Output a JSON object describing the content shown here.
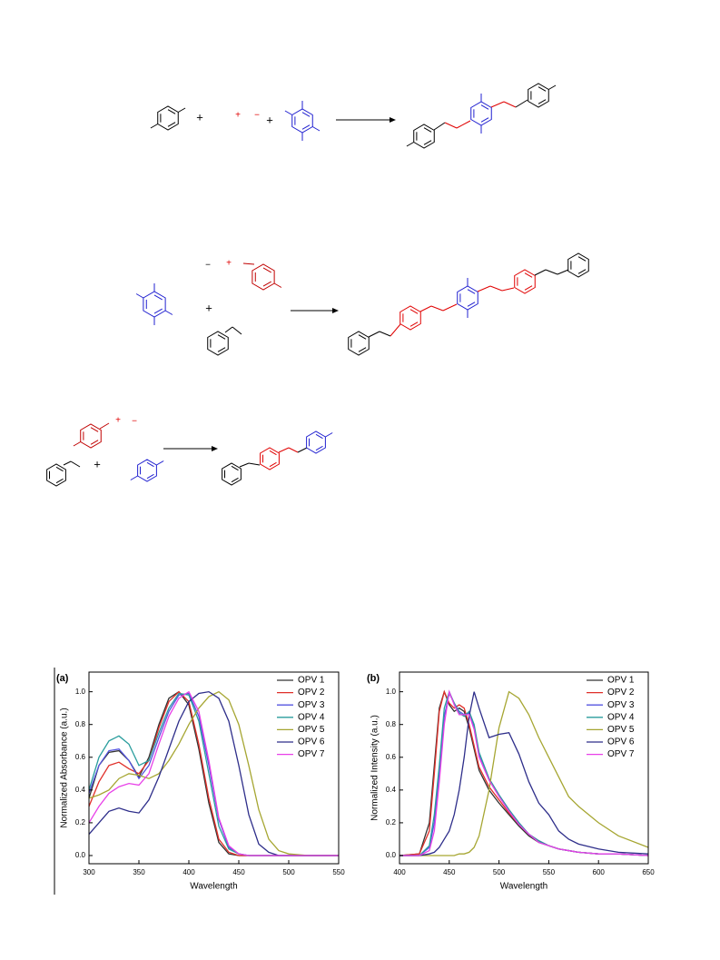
{
  "schemes": [
    {
      "signs": [
        "+",
        "+",
        "−",
        "+"
      ]
    },
    {
      "signs": [
        "−",
        "+",
        "+"
      ]
    },
    {
      "signs": [
        "+",
        "−",
        "+"
      ]
    }
  ],
  "chart_data": [
    {
      "type": "line",
      "label": "(a)",
      "xlabel": "Wavelength",
      "ylabel": "Normalized Absorbance (a.u.)",
      "x": [
        300,
        310,
        320,
        330,
        340,
        350,
        360,
        370,
        380,
        390,
        400,
        410,
        420,
        430,
        440,
        450,
        460,
        470,
        480,
        490,
        500,
        520,
        550
      ],
      "xlim": [
        300,
        550
      ],
      "xticks": [
        300,
        350,
        400,
        450,
        500,
        550
      ],
      "ylim": [
        -0.05,
        1.12
      ],
      "yticks": [
        {
          "value": 0,
          "label": "0.0"
        },
        0.2,
        0.4,
        0.6,
        0.8,
        {
          "value": 1,
          "label": "1.0"
        }
      ],
      "legend": "upper right",
      "series": [
        {
          "name": "OPV 1",
          "color": "#333333",
          "values": [
            0.35,
            0.55,
            0.63,
            0.64,
            0.58,
            0.48,
            0.6,
            0.8,
            0.96,
            1.0,
            0.92,
            0.65,
            0.32,
            0.08,
            0.01,
            0,
            0,
            0,
            0,
            0,
            0,
            0,
            0
          ]
        },
        {
          "name": "OPV 2",
          "color": "#e0302a",
          "values": [
            0.3,
            0.45,
            0.55,
            0.57,
            0.53,
            0.5,
            0.58,
            0.78,
            0.94,
            1.0,
            0.94,
            0.68,
            0.35,
            0.1,
            0.02,
            0,
            0,
            0,
            0,
            0,
            0,
            0,
            0
          ]
        },
        {
          "name": "OPV 3",
          "color": "#5454e0",
          "values": [
            0.38,
            0.55,
            0.64,
            0.65,
            0.58,
            0.47,
            0.55,
            0.72,
            0.88,
            0.98,
            0.99,
            0.85,
            0.55,
            0.22,
            0.05,
            0.01,
            0,
            0,
            0,
            0,
            0,
            0,
            0
          ]
        },
        {
          "name": "OPV 4",
          "color": "#2a9d9d",
          "values": [
            0.4,
            0.6,
            0.7,
            0.73,
            0.68,
            0.55,
            0.58,
            0.75,
            0.9,
            0.99,
            0.98,
            0.82,
            0.5,
            0.18,
            0.04,
            0.01,
            0,
            0,
            0,
            0,
            0,
            0,
            0
          ]
        },
        {
          "name": "OPV 5",
          "color": "#a6a632",
          "values": [
            0.35,
            0.37,
            0.4,
            0.47,
            0.5,
            0.49,
            0.47,
            0.5,
            0.58,
            0.68,
            0.8,
            0.9,
            0.97,
            1.0,
            0.95,
            0.8,
            0.55,
            0.28,
            0.1,
            0.03,
            0.01,
            0,
            0
          ]
        },
        {
          "name": "OPV 6",
          "color": "#2e2e8a",
          "values": [
            0.13,
            0.2,
            0.27,
            0.29,
            0.27,
            0.26,
            0.34,
            0.48,
            0.65,
            0.82,
            0.94,
            0.99,
            1.0,
            0.96,
            0.82,
            0.55,
            0.25,
            0.07,
            0.02,
            0,
            0,
            0,
            0
          ]
        },
        {
          "name": "OPV 7",
          "color": "#e840e8",
          "values": [
            0.2,
            0.3,
            0.38,
            0.42,
            0.44,
            0.43,
            0.5,
            0.68,
            0.85,
            0.96,
            1.0,
            0.88,
            0.58,
            0.23,
            0.06,
            0.01,
            0,
            0,
            0,
            0,
            0,
            0,
            0
          ]
        }
      ]
    },
    {
      "type": "line",
      "label": "(b)",
      "xlabel": "Wavelength",
      "ylabel": "Normalized Intensity (a.u.)",
      "x": [
        400,
        420,
        430,
        435,
        440,
        445,
        450,
        455,
        460,
        465,
        470,
        475,
        480,
        490,
        500,
        510,
        520,
        530,
        540,
        550,
        560,
        570,
        580,
        600,
        620,
        650
      ],
      "xlim": [
        400,
        650
      ],
      "xticks": [
        400,
        450,
        500,
        550,
        600,
        650
      ],
      "ylim": [
        -0.05,
        1.12
      ],
      "yticks": [
        {
          "value": 0,
          "label": "0.0"
        },
        0.2,
        0.4,
        0.6,
        0.8,
        {
          "value": 1,
          "label": "1.0"
        }
      ],
      "legend": "upper right",
      "series": [
        {
          "name": "OPV 1",
          "color": "#333333",
          "values": [
            0,
            0.01,
            0.2,
            0.55,
            0.9,
            1.0,
            0.92,
            0.88,
            0.9,
            0.88,
            0.78,
            0.65,
            0.52,
            0.4,
            0.32,
            0.25,
            0.18,
            0.12,
            0.08,
            0.06,
            0.04,
            0.03,
            0.02,
            0.01,
            0.01,
            0
          ]
        },
        {
          "name": "OPV 2",
          "color": "#e0302a",
          "values": [
            0,
            0.01,
            0.15,
            0.5,
            0.88,
            1.0,
            0.93,
            0.9,
            0.92,
            0.9,
            0.8,
            0.67,
            0.54,
            0.42,
            0.34,
            0.26,
            0.19,
            0.13,
            0.09,
            0.06,
            0.04,
            0.03,
            0.02,
            0.01,
            0.01,
            0
          ]
        },
        {
          "name": "OPV 3",
          "color": "#5454e0",
          "values": [
            0,
            0,
            0.05,
            0.2,
            0.5,
            0.85,
            0.99,
            0.93,
            0.88,
            0.86,
            0.87,
            0.78,
            0.62,
            0.47,
            0.37,
            0.28,
            0.2,
            0.13,
            0.09,
            0.06,
            0.04,
            0.03,
            0.02,
            0.01,
            0.01,
            0
          ]
        },
        {
          "name": "OPV 4",
          "color": "#2a9d9d",
          "values": [
            0,
            0,
            0.06,
            0.25,
            0.55,
            0.9,
            1.0,
            0.93,
            0.87,
            0.85,
            0.88,
            0.8,
            0.63,
            0.47,
            0.37,
            0.28,
            0.2,
            0.13,
            0.09,
            0.06,
            0.04,
            0.03,
            0.02,
            0.01,
            0.01,
            0
          ]
        },
        {
          "name": "OPV 5",
          "color": "#a6a632",
          "values": [
            0,
            0,
            0,
            0,
            0,
            0,
            0,
            0,
            0.01,
            0.01,
            0.02,
            0.05,
            0.12,
            0.4,
            0.78,
            1.0,
            0.96,
            0.86,
            0.72,
            0.6,
            0.48,
            0.36,
            0.3,
            0.2,
            0.12,
            0.05
          ]
        },
        {
          "name": "OPV 6",
          "color": "#2e2e8a",
          "values": [
            0,
            0,
            0.01,
            0.02,
            0.05,
            0.1,
            0.15,
            0.25,
            0.4,
            0.6,
            0.85,
            1.0,
            0.9,
            0.72,
            0.74,
            0.75,
            0.62,
            0.45,
            0.32,
            0.25,
            0.15,
            0.1,
            0.07,
            0.04,
            0.02,
            0.01
          ]
        },
        {
          "name": "OPV 7",
          "color": "#e840e8",
          "values": [
            0,
            0,
            0.03,
            0.15,
            0.45,
            0.8,
            1.0,
            0.92,
            0.86,
            0.86,
            0.86,
            0.77,
            0.6,
            0.46,
            0.36,
            0.27,
            0.19,
            0.13,
            0.08,
            0.06,
            0.04,
            0.03,
            0.02,
            0.01,
            0.01,
            0
          ]
        }
      ]
    }
  ]
}
